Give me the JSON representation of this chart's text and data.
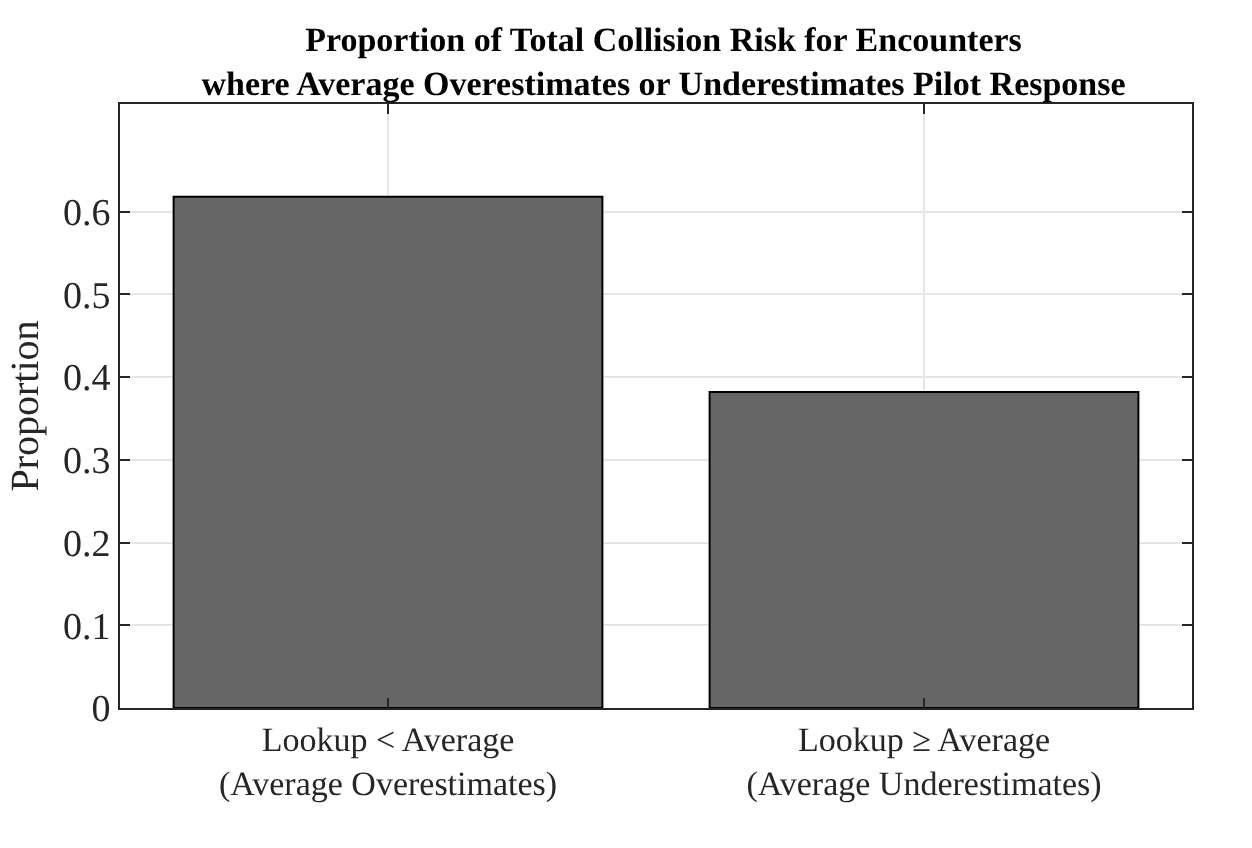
{
  "chart_data": {
    "type": "bar",
    "title": "Proportion of Total Collision Risk for Encounters\nwhere Average Overestimates or Underestimates Pilot Response",
    "ylabel": "Proportion",
    "categories": [
      "Lookup < Average\n(Average Overestimates)",
      "Lookup ≥ Average\n(Average Underestimates)"
    ],
    "values": [
      0.618,
      0.382
    ],
    "color": "#666666",
    "ylim": [
      0,
      0.73
    ],
    "yticks": [
      0,
      0.1,
      0.2,
      0.3,
      0.4,
      0.5,
      0.6
    ],
    "grid": true
  }
}
